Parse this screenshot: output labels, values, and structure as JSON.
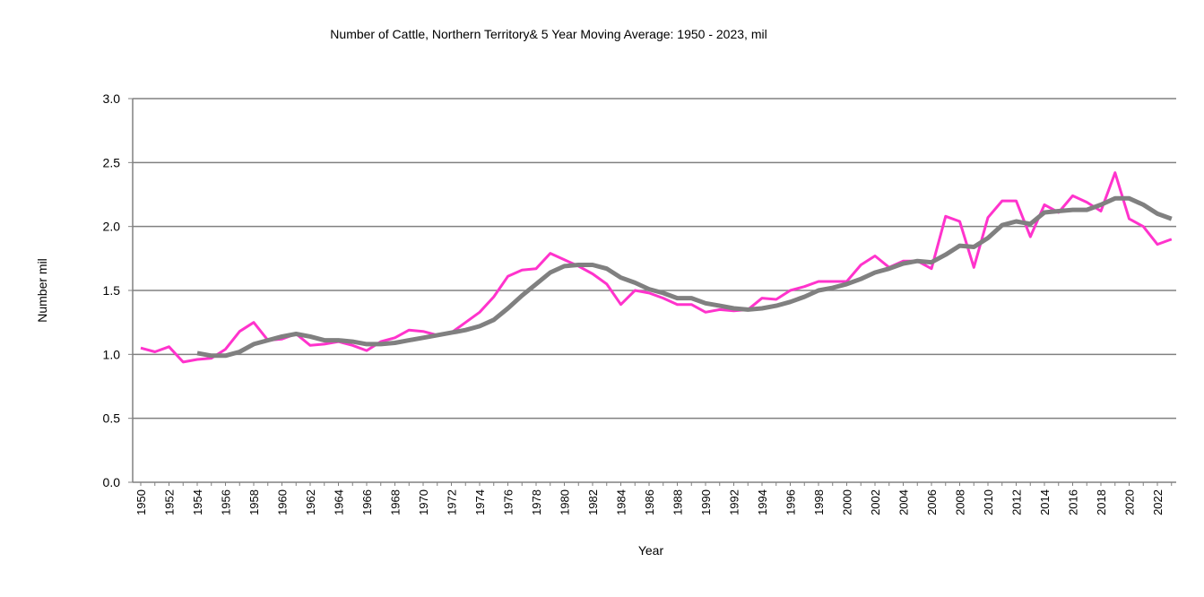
{
  "chart_data": {
    "type": "line",
    "title": "Number of  Cattle,  Northern Territory& 5 Year Moving Average: 1950 - 2023, mil",
    "xlabel": "Year",
    "ylabel": "Number mil",
    "ylim": [
      0,
      3
    ],
    "yticks": [
      "0.0",
      "0.5",
      "1.0",
      "1.5",
      "2.0",
      "2.5",
      "3.0"
    ],
    "ytick_values": [
      0,
      0.5,
      1,
      1.5,
      2,
      2.5,
      3
    ],
    "grid": true,
    "legend": "none",
    "x_start": 1950,
    "x_end": 2023,
    "xtick_step": 2,
    "series": [
      {
        "name": "Number of Cattle",
        "color": "#ff33cc",
        "start_year": 1950,
        "values": [
          1.05,
          1.02,
          1.06,
          0.94,
          0.96,
          0.97,
          1.04,
          1.18,
          1.25,
          1.11,
          1.12,
          1.16,
          1.07,
          1.08,
          1.1,
          1.07,
          1.03,
          1.1,
          1.13,
          1.19,
          1.18,
          1.15,
          1.17,
          1.25,
          1.33,
          1.45,
          1.61,
          1.66,
          1.67,
          1.79,
          1.74,
          1.69,
          1.63,
          1.55,
          1.39,
          1.5,
          1.48,
          1.44,
          1.39,
          1.39,
          1.33,
          1.35,
          1.34,
          1.35,
          1.44,
          1.43,
          1.5,
          1.53,
          1.57,
          1.57,
          1.57,
          1.7,
          1.77,
          1.68,
          1.73,
          1.73,
          1.67,
          2.08,
          2.04,
          1.68,
          2.07,
          2.2,
          2.2,
          1.92,
          2.17,
          2.11,
          2.24,
          2.19,
          2.12,
          2.42,
          2.06,
          2.0,
          1.86,
          1.9
        ]
      },
      {
        "name": "5 Year Moving Average",
        "color": "#808080",
        "start_year": 1954,
        "values": [
          1.01,
          0.99,
          0.99,
          1.02,
          1.08,
          1.11,
          1.14,
          1.16,
          1.14,
          1.11,
          1.11,
          1.1,
          1.08,
          1.08,
          1.09,
          1.11,
          1.13,
          1.15,
          1.17,
          1.19,
          1.22,
          1.27,
          1.36,
          1.46,
          1.55,
          1.64,
          1.69,
          1.7,
          1.7,
          1.67,
          1.6,
          1.56,
          1.51,
          1.48,
          1.44,
          1.44,
          1.4,
          1.38,
          1.36,
          1.35,
          1.36,
          1.38,
          1.41,
          1.45,
          1.5,
          1.52,
          1.55,
          1.59,
          1.64,
          1.67,
          1.71,
          1.73,
          1.72,
          1.78,
          1.85,
          1.84,
          1.91,
          2.01,
          2.04,
          2.02,
          2.11,
          2.12,
          2.13,
          2.13,
          2.17,
          2.22,
          2.22,
          2.17,
          2.1,
          2.06
        ]
      }
    ]
  }
}
